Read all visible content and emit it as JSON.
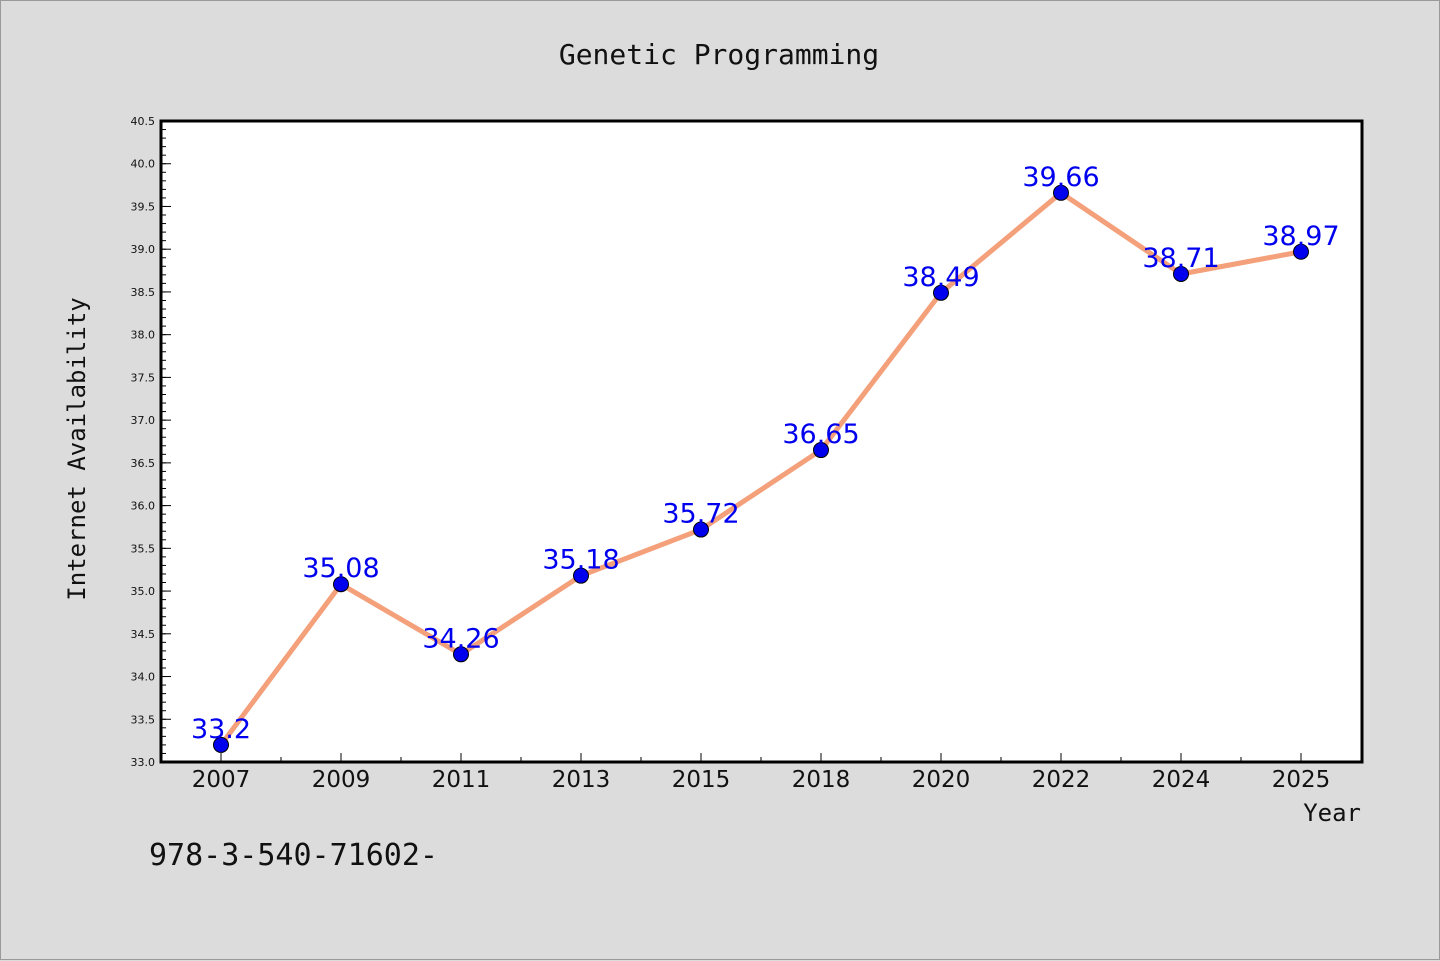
{
  "chart_data": {
    "type": "line",
    "title": "Genetic Programming",
    "xlabel": "Year",
    "ylabel": "Internet Availability",
    "categories": [
      "2007",
      "2009",
      "2011",
      "2013",
      "2015",
      "2018",
      "2020",
      "2022",
      "2024",
      "2025"
    ],
    "series": [
      {
        "values": [
          33.2,
          35.08,
          34.26,
          35.18,
          35.72,
          36.65,
          38.49,
          39.66,
          38.71,
          38.97
        ]
      }
    ],
    "data_labels": [
      "33.2",
      "35.08",
      "34.26",
      "35.18",
      "35.72",
      "36.65",
      "38.49",
      "39.66",
      "38.71",
      "38.97"
    ],
    "ylim": [
      33.0,
      40.5
    ],
    "yticks": [
      "33.0",
      "33.5",
      "34.0",
      "34.5",
      "35.0",
      "35.5",
      "36.0",
      "36.5",
      "37.0",
      "37.5",
      "38.0",
      "38.5",
      "39.0",
      "39.5",
      "40.0",
      "40.5"
    ],
    "grid": false,
    "legend": "none",
    "colors": {
      "line": "#f4a07a",
      "marker": "#0000ee",
      "data_label": "#0000ee",
      "background": "#dcdcdc",
      "plot_area": "#ffffff"
    }
  },
  "footer_text": "978-3-540-71602-"
}
